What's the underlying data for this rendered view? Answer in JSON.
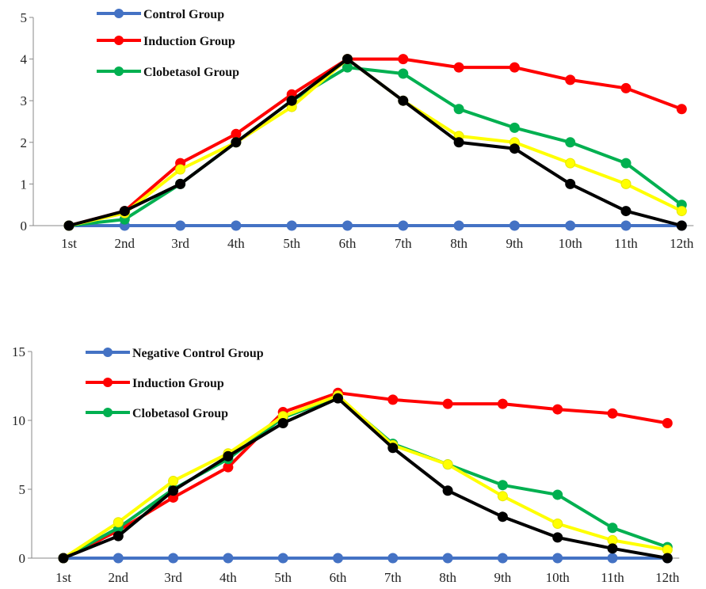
{
  "chart_data": [
    {
      "type": "line",
      "title": "",
      "xlabel": "",
      "ylabel": "",
      "ylim": [
        0,
        5
      ],
      "yticks": [
        "0",
        "1",
        "2",
        "3",
        "4",
        "5"
      ],
      "categories": [
        "1st",
        "2nd",
        "3rd",
        "4th",
        "5th",
        "6th",
        "7th",
        "8th",
        "9th",
        "10th",
        "11th",
        "12th"
      ],
      "grid": false,
      "legend_position": "top-left",
      "legend": [
        "Control Group",
        "Induction Group",
        "Clobetasol Group"
      ],
      "series": [
        {
          "name": "Control Group",
          "color": "#4472C4",
          "values": [
            0,
            0,
            0,
            0,
            0,
            0,
            0,
            0,
            0,
            0,
            0,
            0
          ]
        },
        {
          "name": "Induction Group",
          "color": "#FF0000",
          "values": [
            0,
            0.35,
            1.5,
            2.2,
            3.15,
            4.0,
            4.0,
            3.8,
            3.8,
            3.5,
            3.3,
            2.8
          ]
        },
        {
          "name": "Clobetasol Group",
          "color": "#00B050",
          "values": [
            0,
            0.15,
            1.0,
            2.0,
            3.0,
            3.8,
            3.65,
            2.8,
            2.35,
            2.0,
            1.5,
            0.5
          ]
        },
        {
          "color": "#FFFF00",
          "values": [
            0,
            0.3,
            1.35,
            2.0,
            2.85,
            4.0,
            3.0,
            2.15,
            2.0,
            1.5,
            1.0,
            0.35
          ]
        },
        {
          "color": "#000000",
          "values": [
            0,
            0.35,
            1.0,
            2.0,
            3.0,
            4.0,
            3.0,
            2.0,
            1.85,
            1.0,
            0.35,
            0
          ]
        }
      ]
    },
    {
      "type": "line",
      "title": "",
      "xlabel": "",
      "ylabel": "",
      "ylim": [
        0,
        15
      ],
      "yticks": [
        "0",
        "5",
        "10",
        "15"
      ],
      "categories": [
        "1st",
        "2nd",
        "3rd",
        "4th",
        "5th",
        "6th",
        "7th",
        "8th",
        "9th",
        "10th",
        "11th",
        "12th"
      ],
      "grid": false,
      "legend_position": "top-left",
      "legend": [
        "Negative Control Group",
        "Induction Group",
        "Clobetasol Group"
      ],
      "series": [
        {
          "name": "Negative Control Group",
          "color": "#4472C4",
          "values": [
            0,
            0,
            0,
            0,
            0,
            0,
            0,
            0,
            0,
            0,
            0,
            0
          ]
        },
        {
          "name": "Induction Group",
          "color": "#FF0000",
          "values": [
            0,
            2.0,
            4.4,
            6.6,
            10.6,
            12.0,
            11.5,
            11.2,
            11.2,
            10.8,
            10.5,
            9.8
          ]
        },
        {
          "name": "Clobetasol Group",
          "color": "#00B050",
          "values": [
            0,
            2.2,
            5.0,
            7.2,
            10.2,
            11.7,
            8.3,
            6.8,
            5.3,
            4.6,
            2.2,
            0.8
          ]
        },
        {
          "color": "#FFFF00",
          "values": [
            0,
            2.6,
            5.6,
            7.6,
            10.3,
            11.8,
            8.2,
            6.8,
            4.5,
            2.5,
            1.3,
            0.6
          ]
        },
        {
          "color": "#000000",
          "values": [
            0,
            1.6,
            4.9,
            7.4,
            9.8,
            11.6,
            8.0,
            4.9,
            3.0,
            1.5,
            0.7,
            0
          ]
        }
      ]
    }
  ]
}
